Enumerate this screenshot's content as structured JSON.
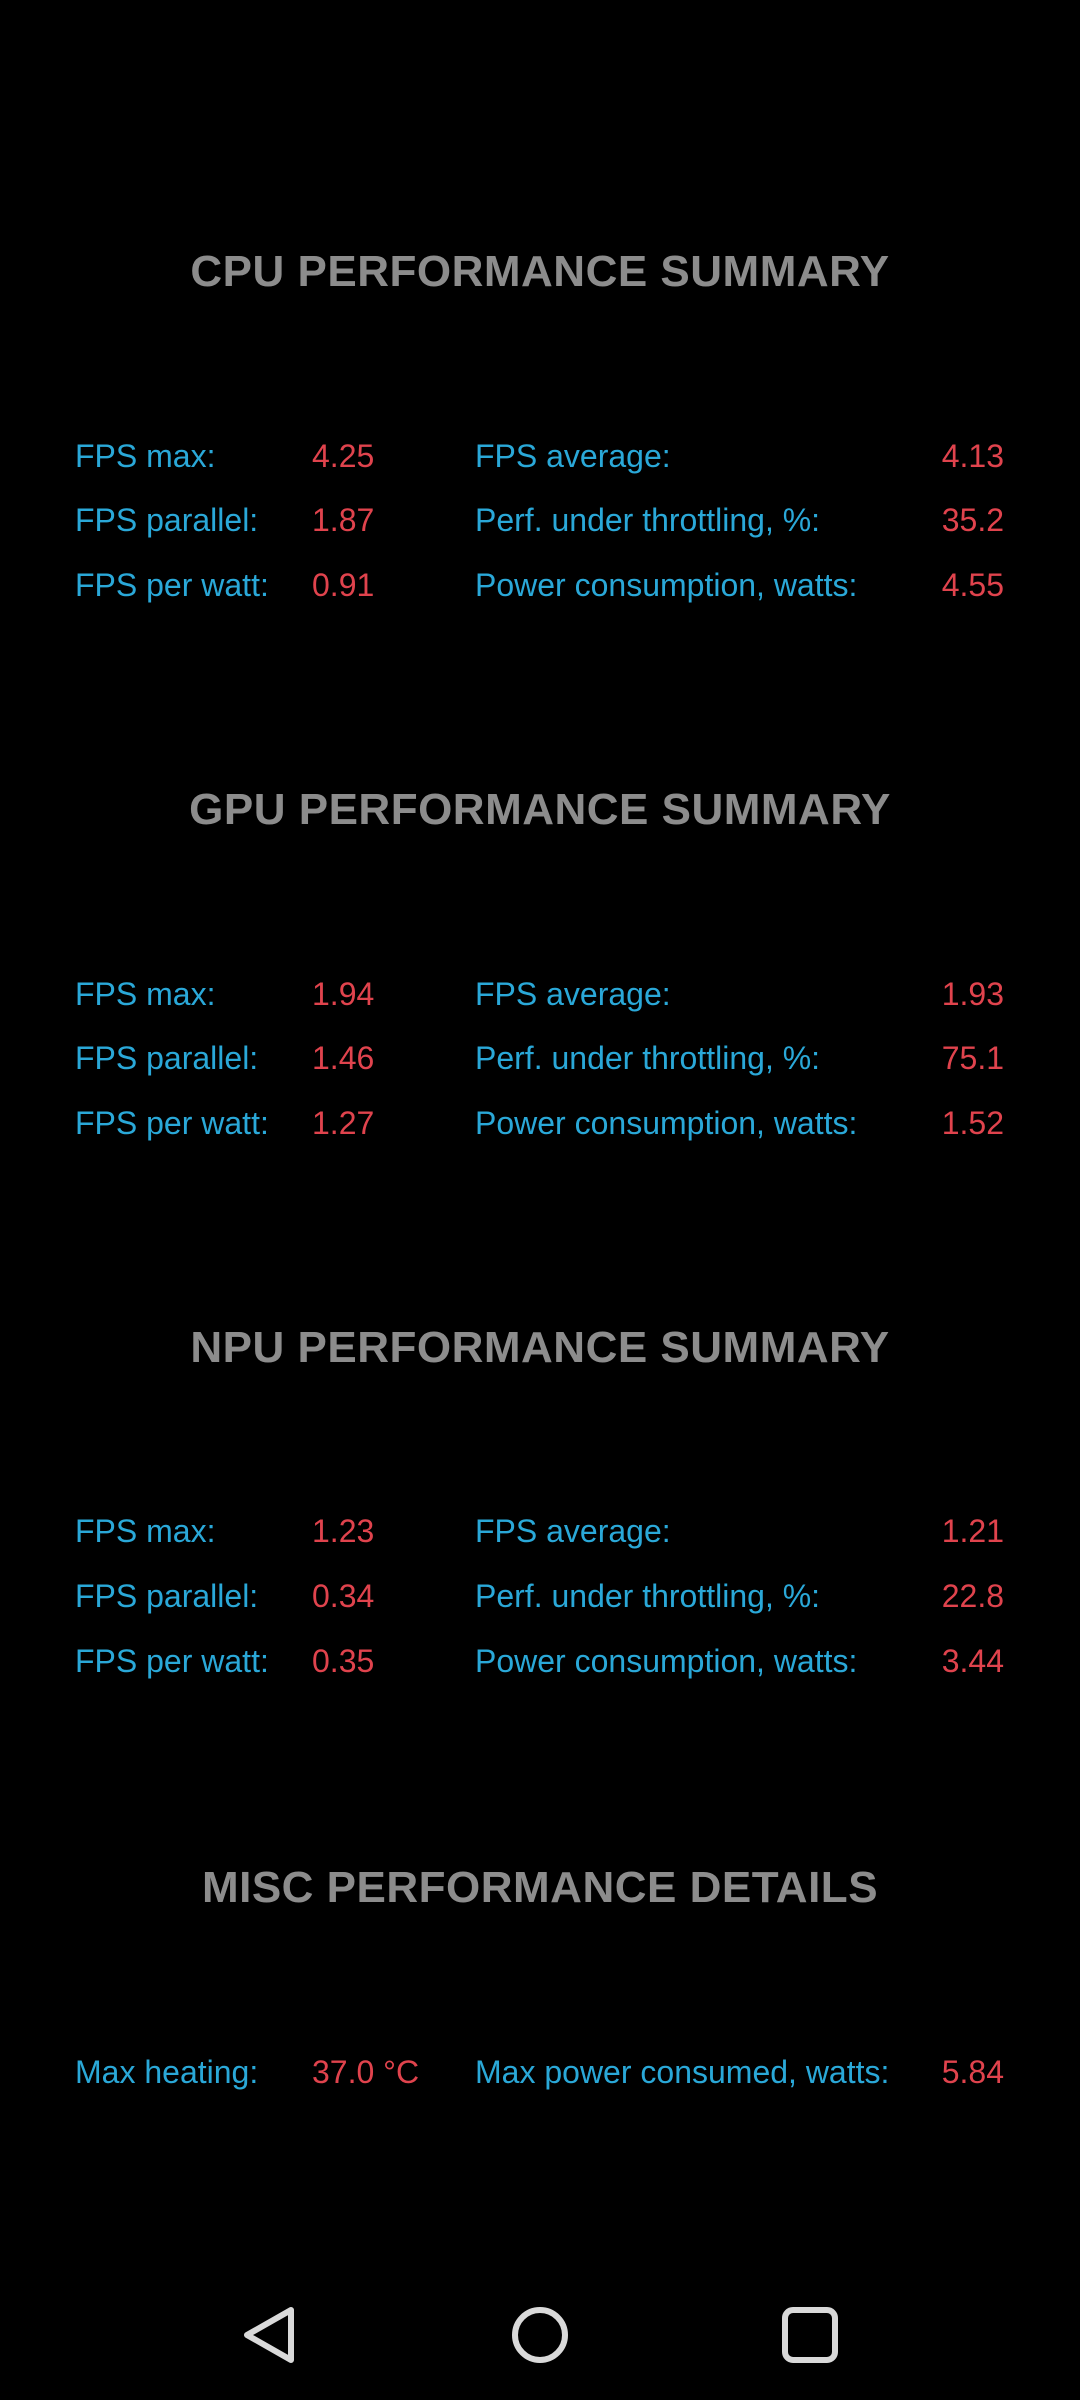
{
  "sections": [
    {
      "title": "CPU PERFORMANCE SUMMARY",
      "rows": [
        {
          "l_label": "FPS max:",
          "l_value": "4.25",
          "r_label": "FPS average:",
          "r_value": "4.13"
        },
        {
          "l_label": "FPS parallel:",
          "l_value": "1.87",
          "r_label": "Perf. under throttling, %:",
          "r_value": "35.2"
        },
        {
          "l_label": "FPS per watt:",
          "l_value": "0.91",
          "r_label": "Power consumption, watts:",
          "r_value": "4.55"
        }
      ]
    },
    {
      "title": "GPU PERFORMANCE SUMMARY",
      "rows": [
        {
          "l_label": "FPS max:",
          "l_value": "1.94",
          "r_label": "FPS average:",
          "r_value": "1.93"
        },
        {
          "l_label": "FPS parallel:",
          "l_value": "1.46",
          "r_label": "Perf. under throttling, %:",
          "r_value": "75.1"
        },
        {
          "l_label": "FPS per watt:",
          "l_value": "1.27",
          "r_label": "Power consumption, watts:",
          "r_value": "1.52"
        }
      ]
    },
    {
      "title": "NPU PERFORMANCE SUMMARY",
      "rows": [
        {
          "l_label": "FPS max:",
          "l_value": "1.23",
          "r_label": "FPS average:",
          "r_value": "1.21"
        },
        {
          "l_label": "FPS parallel:",
          "l_value": "0.34",
          "r_label": "Perf. under throttling, %:",
          "r_value": "22.8"
        },
        {
          "l_label": "FPS per watt:",
          "l_value": "0.35",
          "r_label": "Power consumption, watts:",
          "r_value": "3.44"
        }
      ]
    },
    {
      "title": "MISC PERFORMANCE DETAILS",
      "rows": [
        {
          "l_label": "Max heating:",
          "l_value": "37.0 °C",
          "r_label": "Max power consumed, watts:",
          "r_value": "5.84"
        }
      ]
    }
  ],
  "colors": {
    "background": "#000000",
    "title": "#8c8c8c",
    "label": "#2aa8d8",
    "value": "#e0434d",
    "nav_icon": "#d9d9d9"
  },
  "navbar": {
    "buttons": [
      {
        "name": "back",
        "icon": "triangle-back-icon"
      },
      {
        "name": "home",
        "icon": "circle-home-icon"
      },
      {
        "name": "recents",
        "icon": "square-recents-icon"
      }
    ]
  }
}
